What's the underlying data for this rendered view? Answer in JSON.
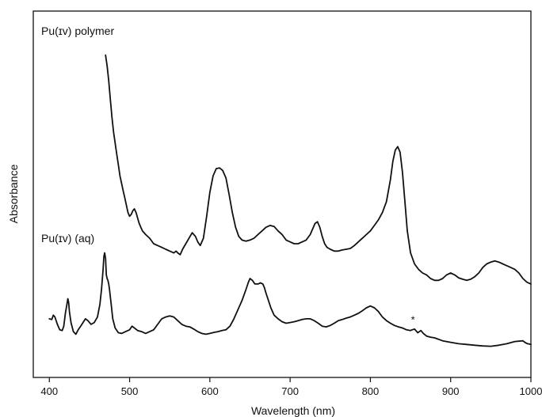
{
  "chart_data": {
    "type": "line",
    "title": "",
    "xlabel": "Wavelength (nm)",
    "ylabel": "Absorbance",
    "xlim": [
      380,
      1000
    ],
    "ylim": [
      0,
      1
    ],
    "xticks": [
      400,
      500,
      600,
      700,
      800,
      900,
      1000
    ],
    "yticks_shown": false,
    "grid": false,
    "legend": "none",
    "annotations": [
      {
        "text": "*",
        "x": 853,
        "y": 0.165
      }
    ],
    "series": [
      {
        "name": "Pu(IV) polymer",
        "label_text": "Pu(ɪᴠ) polymer",
        "x": [
          470,
          472,
          474,
          476,
          478,
          480,
          482,
          484,
          486,
          488,
          490,
          492,
          494,
          496,
          498,
          500,
          502,
          504,
          506,
          508,
          510,
          512,
          514,
          516,
          518,
          520,
          525,
          530,
          535,
          540,
          545,
          550,
          555,
          558,
          560,
          563,
          566,
          570,
          574,
          578,
          582,
          585,
          588,
          592,
          596,
          600,
          604,
          608,
          612,
          616,
          620,
          624,
          628,
          632,
          636,
          640,
          645,
          650,
          655,
          660,
          665,
          670,
          675,
          680,
          685,
          690,
          695,
          700,
          705,
          710,
          715,
          720,
          725,
          728,
          731,
          734,
          737,
          740,
          743,
          746,
          750,
          755,
          760,
          765,
          770,
          775,
          780,
          785,
          790,
          795,
          800,
          805,
          810,
          815,
          820,
          825,
          828,
          831,
          834,
          837,
          840,
          843,
          846,
          850,
          855,
          860,
          865,
          870,
          875,
          880,
          885,
          890,
          895,
          900,
          905,
          910,
          915,
          920,
          925,
          930,
          935,
          940,
          945,
          950,
          955,
          960,
          965,
          970,
          975,
          980,
          985,
          990,
          995,
          1000
        ],
        "y": [
          0.88,
          0.85,
          0.81,
          0.76,
          0.71,
          0.67,
          0.64,
          0.61,
          0.58,
          0.55,
          0.53,
          0.51,
          0.49,
          0.47,
          0.45,
          0.44,
          0.445,
          0.455,
          0.46,
          0.45,
          0.435,
          0.42,
          0.41,
          0.4,
          0.395,
          0.39,
          0.38,
          0.365,
          0.36,
          0.355,
          0.35,
          0.345,
          0.34,
          0.345,
          0.34,
          0.335,
          0.35,
          0.365,
          0.38,
          0.395,
          0.385,
          0.37,
          0.36,
          0.38,
          0.44,
          0.505,
          0.55,
          0.57,
          0.572,
          0.565,
          0.545,
          0.5,
          0.45,
          0.41,
          0.385,
          0.375,
          0.372,
          0.375,
          0.38,
          0.39,
          0.4,
          0.41,
          0.415,
          0.412,
          0.4,
          0.39,
          0.375,
          0.37,
          0.365,
          0.365,
          0.37,
          0.375,
          0.39,
          0.405,
          0.42,
          0.425,
          0.41,
          0.385,
          0.365,
          0.355,
          0.35,
          0.345,
          0.345,
          0.348,
          0.35,
          0.352,
          0.36,
          0.37,
          0.38,
          0.39,
          0.4,
          0.415,
          0.43,
          0.45,
          0.48,
          0.54,
          0.59,
          0.62,
          0.63,
          0.615,
          0.56,
          0.48,
          0.4,
          0.34,
          0.31,
          0.295,
          0.285,
          0.28,
          0.27,
          0.265,
          0.265,
          0.27,
          0.28,
          0.285,
          0.28,
          0.272,
          0.268,
          0.265,
          0.268,
          0.275,
          0.285,
          0.3,
          0.31,
          0.315,
          0.318,
          0.315,
          0.31,
          0.305,
          0.3,
          0.295,
          0.285,
          0.27,
          0.26,
          0.255
        ]
      },
      {
        "name": "Pu(IV) (aq)",
        "label_text": "Pu(ɪᴠ) (aq)",
        "x": [
          400,
          403,
          405,
          407,
          410,
          413,
          416,
          418,
          420,
          422,
          423,
          424,
          425,
          427,
          430,
          433,
          436,
          439,
          442,
          445,
          448,
          452,
          456,
          460,
          463,
          465,
          467,
          468,
          469,
          470,
          471,
          472,
          473,
          474,
          475,
          477,
          479,
          482,
          486,
          490,
          495,
          500,
          503,
          506,
          510,
          515,
          520,
          525,
          530,
          535,
          540,
          545,
          550,
          555,
          560,
          565,
          570,
          575,
          580,
          585,
          590,
          595,
          600,
          605,
          610,
          615,
          620,
          625,
          630,
          635,
          640,
          645,
          648,
          650,
          653,
          656,
          660,
          663,
          666,
          668,
          670,
          673,
          676,
          680,
          685,
          690,
          695,
          700,
          705,
          710,
          715,
          720,
          725,
          730,
          735,
          740,
          745,
          750,
          755,
          760,
          765,
          770,
          775,
          780,
          785,
          790,
          795,
          800,
          805,
          810,
          815,
          820,
          825,
          830,
          835,
          840,
          845,
          850,
          852,
          855,
          857,
          859,
          861,
          863,
          866,
          870,
          875,
          880,
          890,
          900,
          910,
          920,
          930,
          940,
          950,
          960,
          970,
          980,
          990,
          993,
          996,
          1000
        ],
        "y": [
          0.16,
          0.158,
          0.17,
          0.165,
          0.145,
          0.13,
          0.128,
          0.14,
          0.175,
          0.2,
          0.215,
          0.205,
          0.18,
          0.15,
          0.125,
          0.118,
          0.13,
          0.14,
          0.15,
          0.16,
          0.155,
          0.145,
          0.15,
          0.165,
          0.2,
          0.24,
          0.295,
          0.33,
          0.34,
          0.325,
          0.28,
          0.27,
          0.265,
          0.255,
          0.24,
          0.2,
          0.16,
          0.135,
          0.122,
          0.12,
          0.125,
          0.13,
          0.14,
          0.135,
          0.128,
          0.125,
          0.12,
          0.125,
          0.13,
          0.145,
          0.16,
          0.165,
          0.168,
          0.165,
          0.155,
          0.145,
          0.14,
          0.138,
          0.132,
          0.125,
          0.12,
          0.118,
          0.12,
          0.123,
          0.125,
          0.128,
          0.13,
          0.14,
          0.16,
          0.185,
          0.21,
          0.24,
          0.26,
          0.27,
          0.265,
          0.255,
          0.255,
          0.258,
          0.255,
          0.245,
          0.23,
          0.21,
          0.19,
          0.17,
          0.16,
          0.152,
          0.148,
          0.15,
          0.152,
          0.155,
          0.158,
          0.16,
          0.16,
          0.155,
          0.148,
          0.14,
          0.138,
          0.142,
          0.148,
          0.155,
          0.158,
          0.162,
          0.165,
          0.17,
          0.175,
          0.182,
          0.19,
          0.195,
          0.19,
          0.18,
          0.165,
          0.155,
          0.148,
          0.142,
          0.138,
          0.135,
          0.13,
          0.128,
          0.13,
          0.132,
          0.127,
          0.122,
          0.125,
          0.128,
          0.12,
          0.113,
          0.11,
          0.108,
          0.1,
          0.096,
          0.092,
          0.09,
          0.088,
          0.086,
          0.085,
          0.088,
          0.092,
          0.098,
          0.1,
          0.095,
          0.092,
          0.09
        ]
      }
    ]
  }
}
